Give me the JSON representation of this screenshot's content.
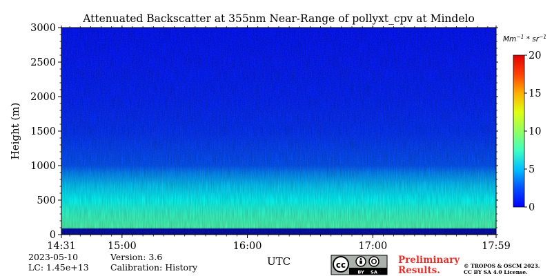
{
  "chart_data": {
    "type": "heatmap",
    "title": "Attenuated Backscatter at 355nm Near-Range of pollyxt_cpv at Mindelo",
    "xlabel": "UTC",
    "ylabel": "Height (m)",
    "x_range": [
      "14:31",
      "17:59"
    ],
    "x_ticks": [
      "14:31",
      "15:00",
      "16:00",
      "17:00",
      "17:59"
    ],
    "x_tick_minutes": [
      0,
      29,
      89,
      149,
      208
    ],
    "ylim": [
      0,
      3000
    ],
    "y_ticks": [
      0,
      500,
      1000,
      1500,
      2000,
      2500,
      3000
    ],
    "colorbar": {
      "label": "Mm^-1 * sr^-1",
      "label_base": "Mm",
      "label_exp1": "−1",
      "label_mid": " * sr",
      "label_exp2": "−1",
      "range": [
        0,
        20
      ],
      "ticks": [
        0,
        5,
        10,
        15,
        20
      ],
      "colormap": "jet"
    },
    "profile": [
      {
        "height": 0,
        "value": 0.5
      },
      {
        "height": 80,
        "value": 1.0
      },
      {
        "height": 100,
        "value": 9.0
      },
      {
        "height": 300,
        "value": 8.5
      },
      {
        "height": 500,
        "value": 7.5
      },
      {
        "height": 700,
        "value": 6.5
      },
      {
        "height": 900,
        "value": 5.0
      },
      {
        "height": 1000,
        "value": 4.0
      },
      {
        "height": 1500,
        "value": 3.3
      },
      {
        "height": 2000,
        "value": 3.0
      },
      {
        "height": 3000,
        "value": 2.7
      }
    ]
  },
  "footer": {
    "date": "2023-05-10",
    "version": "Version: 3.6",
    "lc": "LC: 1.45e+13",
    "calibration": "Calibration: History",
    "preliminary_line1": "Preliminary",
    "preliminary_line2": "Results.",
    "copyright_line1": "© TROPOS & OSCM 2023.",
    "copyright_line2": "CC BY SA 4.0 License.",
    "cc_badge_by": "BY",
    "cc_badge_sa": "SA",
    "cc_text": "cc"
  },
  "colors": {
    "preliminary": "#e8312a"
  }
}
